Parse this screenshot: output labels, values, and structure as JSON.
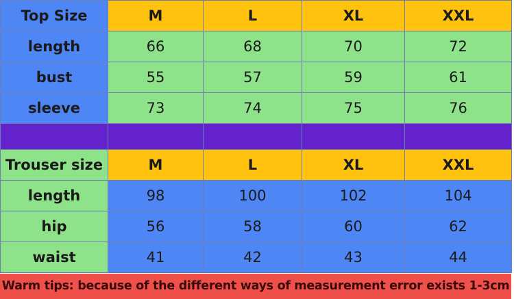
{
  "top": {
    "label": "Top Size",
    "sizes": [
      "M",
      "L",
      "XL",
      "XXL"
    ],
    "rows": [
      {
        "name": "length",
        "values": [
          "66",
          "68",
          "70",
          "72"
        ]
      },
      {
        "name": "bust",
        "values": [
          "55",
          "57",
          "59",
          "61"
        ]
      },
      {
        "name": "sleeve",
        "values": [
          "73",
          "74",
          "75",
          "76"
        ]
      }
    ]
  },
  "trouser": {
    "label": "Trouser size",
    "sizes": [
      "M",
      "L",
      "XL",
      "XXL"
    ],
    "rows": [
      {
        "name": "length",
        "values": [
          "98",
          "100",
          "102",
          "104"
        ]
      },
      {
        "name": "hip",
        "values": [
          "56",
          "58",
          "60",
          "62"
        ]
      },
      {
        "name": "waist",
        "values": [
          "41",
          "42",
          "43",
          "44"
        ]
      }
    ]
  },
  "tips": "Warm tips: because of the different ways of measurement error exists 1-3cm",
  "colors": {
    "blue": "#4f86f5",
    "yellow": "#ffc20e",
    "green": "#8ee28a",
    "purple": "#6322cc",
    "red": "#f0504a"
  }
}
